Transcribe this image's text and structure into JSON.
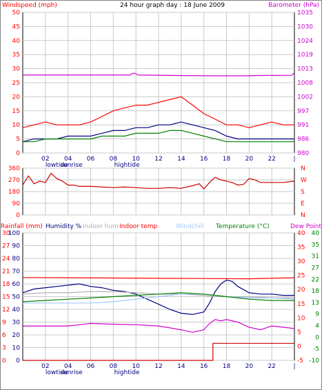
{
  "chart_data": [
    {
      "type": "line",
      "title": "24 hour graph day : 18 June 2009",
      "left_axis_label": "Windspeed (mph)",
      "right_axis_label": "Barometer (hPa)",
      "left_ylim": [
        0,
        50
      ],
      "left_ticks": [
        "0",
        "5",
        "10",
        "15",
        "20",
        "25",
        "30",
        "35",
        "40",
        "45",
        "50"
      ],
      "right_ylim": [
        980,
        1035
      ],
      "right_ticks": [
        "980",
        "986",
        "991",
        "997",
        "1002",
        "1008",
        "1013",
        "1019",
        "1024",
        "1030",
        "1035"
      ],
      "x_ticks": [
        "02",
        "04",
        "06",
        "08",
        "10",
        "12",
        "14",
        "16",
        "18",
        "20",
        "22"
      ],
      "x_annotations": [
        {
          "label": "lowtide",
          "hour": 3.0,
          "color": "#000080"
        },
        {
          "label": "sunrise",
          "hour": 4.3,
          "color": "#000080"
        },
        {
          "label": "hightide",
          "hour": 9.2,
          "color": "#000080"
        }
      ],
      "grid": true,
      "series": [
        {
          "name": "Windspeed (mph)",
          "color": "#ff0000",
          "axis": "left",
          "x": [
            0,
            1,
            2,
            3,
            4,
            5,
            6,
            7,
            8,
            9,
            10,
            11,
            12,
            13,
            14,
            15,
            16,
            17,
            18,
            19,
            20,
            21,
            22,
            23,
            24
          ],
          "values": [
            9,
            10,
            11,
            10,
            10,
            10,
            11,
            13,
            15,
            16,
            17,
            17,
            18,
            19,
            20,
            17,
            14,
            12,
            10,
            10,
            9,
            10,
            11,
            10,
            10
          ]
        },
        {
          "name": "Wind gust",
          "color": "#000080",
          "axis": "left",
          "x": [
            0,
            1,
            2,
            3,
            4,
            5,
            6,
            7,
            8,
            9,
            10,
            11,
            12,
            13,
            14,
            15,
            16,
            17,
            18,
            19,
            20,
            21,
            22,
            23,
            24
          ],
          "values": [
            4,
            5,
            5,
            5,
            6,
            6,
            6,
            7,
            8,
            8,
            9,
            9,
            10,
            10,
            11,
            10,
            9,
            8,
            6,
            5,
            5,
            5,
            5,
            5,
            5
          ]
        },
        {
          "name": "Wind average",
          "color": "#008000",
          "axis": "left",
          "x": [
            0,
            1,
            2,
            3,
            4,
            5,
            6,
            7,
            8,
            9,
            10,
            11,
            12,
            13,
            14,
            15,
            16,
            17,
            18,
            19,
            20,
            21,
            22,
            23,
            24
          ],
          "values": [
            4,
            4,
            5,
            5,
            5,
            5,
            5,
            6,
            6,
            6,
            7,
            7,
            7,
            8,
            8,
            7,
            6,
            5,
            4,
            4,
            4,
            4,
            4,
            4,
            4
          ]
        },
        {
          "name": "Barometer (hPa)",
          "color": "#cc00cc",
          "axis": "right",
          "x": [
            0,
            9.5,
            9.7,
            9.9,
            10.2,
            14,
            17,
            20,
            20.5,
            23.8,
            24
          ],
          "values": [
            1010.5,
            1010.5,
            1011.2,
            1011.2,
            1010.5,
            1010.3,
            1010.2,
            1010.2,
            1010.3,
            1010.4,
            1011.5
          ]
        }
      ]
    },
    {
      "type": "line",
      "left_ylim": [
        0,
        360
      ],
      "left_ticks": [
        "0",
        "90",
        "180",
        "270",
        "360"
      ],
      "right_ticks": [
        "N",
        "E",
        "S",
        "W",
        "N"
      ],
      "grid": true,
      "series": [
        {
          "name": "Wind direction",
          "color": "#cc0000",
          "axis": "left",
          "x": [
            0,
            0.5,
            1,
            1.5,
            2,
            2.5,
            3,
            3.5,
            4,
            4.5,
            5,
            6,
            7,
            8,
            9,
            10,
            11,
            12,
            13,
            14,
            15,
            15.6,
            16,
            16.5,
            17,
            17.5,
            18,
            18.5,
            19,
            19.5,
            20,
            20.5,
            21,
            22,
            23,
            24
          ],
          "values": [
            230,
            300,
            240,
            260,
            250,
            320,
            280,
            260,
            230,
            230,
            220,
            220,
            215,
            210,
            215,
            210,
            205,
            205,
            210,
            205,
            225,
            240,
            200,
            250,
            290,
            270,
            260,
            250,
            230,
            235,
            280,
            270,
            250,
            250,
            250,
            260
          ]
        }
      ]
    },
    {
      "type": "line",
      "left_labels": [
        "Rainfall (mm)",
        "Humidity %"
      ],
      "top_labels": [
        "Indoor hum",
        "Indoor temp",
        "Windchill"
      ],
      "right_labels": [
        "Temperature (°C)",
        "Dew Point"
      ],
      "rain_ticks": [
        "0",
        "3",
        "6",
        "9",
        "12",
        "15",
        "18",
        "21",
        "24",
        "27",
        "30"
      ],
      "humidity_ticks": [
        "0",
        "10",
        "20",
        "30",
        "40",
        "50",
        "60",
        "70",
        "80",
        "90",
        "100"
      ],
      "indoor_temp_ticks": [
        "-5",
        "0",
        "5",
        "10",
        "15",
        "20",
        "25",
        "30",
        "35",
        "40"
      ],
      "temperature_ticks": [
        "-10",
        "-5",
        "0",
        "4",
        "9",
        "13",
        "18",
        "22",
        "27",
        "31",
        "35",
        "40"
      ],
      "x_ticks": [
        "02",
        "04",
        "06",
        "08",
        "10",
        "12",
        "14",
        "16",
        "18",
        "20",
        "22"
      ],
      "x_annotations": [
        {
          "label": "lowtide",
          "hour": 3.0,
          "color": "#000080"
        },
        {
          "label": "sunrise",
          "hour": 4.3,
          "color": "#000080"
        },
        {
          "label": "hightide",
          "hour": 9.2,
          "color": "#000080"
        }
      ],
      "grid": true,
      "series": [
        {
          "name": "Rainfall (mm)",
          "color": "#cc0000",
          "axis": "rain",
          "x": [
            0,
            16.8,
            16.8,
            24
          ],
          "values": [
            0,
            0,
            4,
            4
          ]
        },
        {
          "name": "Humidity %",
          "color": "#000080",
          "axis": "humidity",
          "x": [
            0,
            1,
            2,
            3,
            4,
            5,
            6,
            7,
            8,
            9,
            10,
            11,
            12,
            13,
            14,
            15,
            16,
            16.5,
            17,
            17.5,
            18,
            18.5,
            19,
            20,
            21,
            22,
            23,
            24
          ],
          "values": [
            53,
            56,
            57,
            58,
            59,
            60,
            58,
            57,
            55,
            54,
            52,
            48,
            44,
            40,
            37,
            36,
            38,
            45,
            54,
            60,
            63,
            62,
            58,
            53,
            52,
            52,
            51,
            51
          ]
        },
        {
          "name": "Indoor hum",
          "color": "#b0b0b0",
          "axis": "humidity",
          "x": [
            0,
            2,
            4,
            6,
            8,
            10,
            12,
            14,
            16,
            17,
            18,
            20,
            22,
            24
          ],
          "values": [
            52,
            53,
            53,
            54,
            54,
            53,
            52,
            52,
            51,
            50,
            50,
            50,
            49,
            49
          ]
        },
        {
          "name": "Indoor temp",
          "color": "#ff0000",
          "axis": "temperature",
          "x": [
            0,
            4,
            8,
            12,
            16,
            20,
            24
          ],
          "values": [
            22.5,
            22.4,
            22.3,
            22.2,
            22.1,
            22.0,
            22.4
          ]
        },
        {
          "name": "Windchill",
          "color": "#a0c8ff",
          "axis": "humidity",
          "x": [
            0,
            2,
            4,
            6,
            8,
            10,
            12,
            14,
            16,
            18,
            20,
            22,
            24
          ],
          "values": [
            45,
            45,
            45,
            45,
            46,
            48,
            50,
            52,
            52,
            50,
            49,
            49,
            48
          ]
        },
        {
          "name": "Temperature (°C)",
          "color": "#008000",
          "axis": "temperature",
          "x": [
            0,
            2,
            4,
            6,
            8,
            10,
            12,
            14,
            16,
            17,
            18,
            20,
            22,
            24
          ],
          "values": [
            13,
            13.5,
            14,
            14.5,
            15,
            15.5,
            16,
            16.5,
            16,
            15.5,
            15,
            14,
            13.5,
            13.5
          ]
        },
        {
          "name": "Dew Point",
          "color": "#cc00cc",
          "axis": "temperature",
          "x": [
            0,
            2,
            4,
            6,
            8,
            10,
            12,
            14,
            15,
            16,
            16.5,
            17,
            17.5,
            18,
            19,
            20,
            21,
            22,
            23,
            24
          ],
          "values": [
            3.5,
            3.5,
            3.5,
            4.5,
            4.2,
            4,
            3.5,
            2,
            1,
            2,
            4.5,
            6,
            5.5,
            6,
            5,
            3,
            2,
            3.5,
            3,
            2.5
          ]
        }
      ]
    }
  ],
  "colors": {
    "frame": "#808080",
    "grid": "#c8c8c8",
    "axis_text": "#ff0000",
    "pressure_text": "#cc00cc",
    "humidity_text": "#000080",
    "temperature_text": "#008000"
  }
}
